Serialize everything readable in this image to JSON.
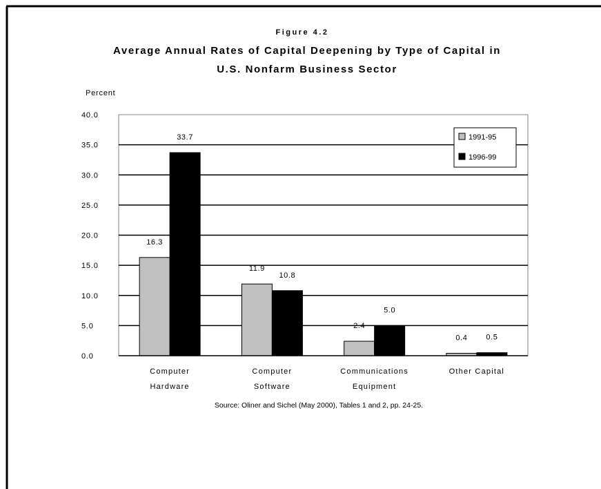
{
  "figure_label": "Figure 4.2",
  "source_note": "Source: Oliner and Sichel (May 2000), Tables 1 and 2, pp. 24-25.",
  "chart_data": {
    "type": "bar",
    "title": "Average Annual Rates of Capital Deepening by Type of Capital in U.S. Nonfarm Business Sector",
    "title_lines": [
      "Average Annual Rates of Capital Deepening by Type of Capital in",
      "U.S. Nonfarm Business Sector"
    ],
    "ylabel": "Percent",
    "xlabel": "",
    "ylim": [
      0,
      40
    ],
    "yticks": [
      "0.0",
      "5.0",
      "10.0",
      "15.0",
      "20.0",
      "25.0",
      "30.0",
      "35.0",
      "40.0"
    ],
    "categories": [
      [
        "Computer",
        "Hardware"
      ],
      [
        "Computer",
        "Software"
      ],
      [
        "Communications",
        "Equipment"
      ],
      [
        "Other Capital"
      ]
    ],
    "series": [
      {
        "name": "1991-95",
        "values": [
          16.3,
          11.9,
          2.4,
          0.4
        ],
        "labels": [
          "16.3",
          "11.9",
          "2.4",
          "0.4"
        ],
        "color": "#c0c0c0"
      },
      {
        "name": "1996-99",
        "values": [
          33.7,
          10.8,
          5.0,
          0.5
        ],
        "labels": [
          "33.7",
          "10.8",
          "5.0",
          "0.5"
        ],
        "color": "#000000"
      }
    ],
    "grid": true,
    "legend_position": "top-right"
  }
}
